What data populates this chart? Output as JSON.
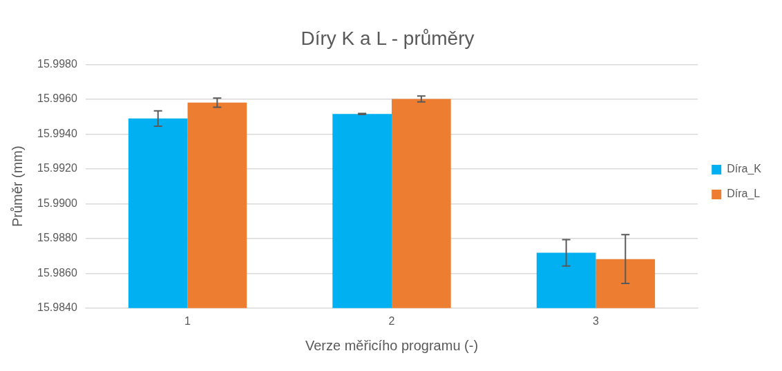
{
  "chart_data": {
    "type": "bar",
    "title": "Díry K a L - průměry",
    "xlabel": "Verze měřicího programu (-)",
    "ylabel": "Průměr (mm)",
    "categories": [
      "1",
      "2",
      "3"
    ],
    "series": [
      {
        "name": "Díra_K",
        "color": "#00b0f0",
        "values": [
          15.9949,
          15.99516,
          15.98718
        ],
        "errors": [
          0.00044,
          3e-05,
          0.00076
        ]
      },
      {
        "name": "Díra_L",
        "color": "#ed7d31",
        "values": [
          15.99581,
          15.99602,
          15.98682
        ],
        "errors": [
          0.00026,
          0.00017,
          0.0014
        ]
      }
    ],
    "ylim": [
      15.984,
      15.998
    ],
    "yticks": [
      {
        "value": 15.984,
        "label": "15.9840"
      },
      {
        "value": 15.986,
        "label": "15.9860"
      },
      {
        "value": 15.988,
        "label": "15.9880"
      },
      {
        "value": 15.99,
        "label": "15.9900"
      },
      {
        "value": 15.992,
        "label": "15.9920"
      },
      {
        "value": 15.994,
        "label": "15.9940"
      },
      {
        "value": 15.996,
        "label": "15.9960"
      },
      {
        "value": 15.998,
        "label": "15.9980"
      }
    ],
    "grid": "y",
    "legend": "right"
  }
}
